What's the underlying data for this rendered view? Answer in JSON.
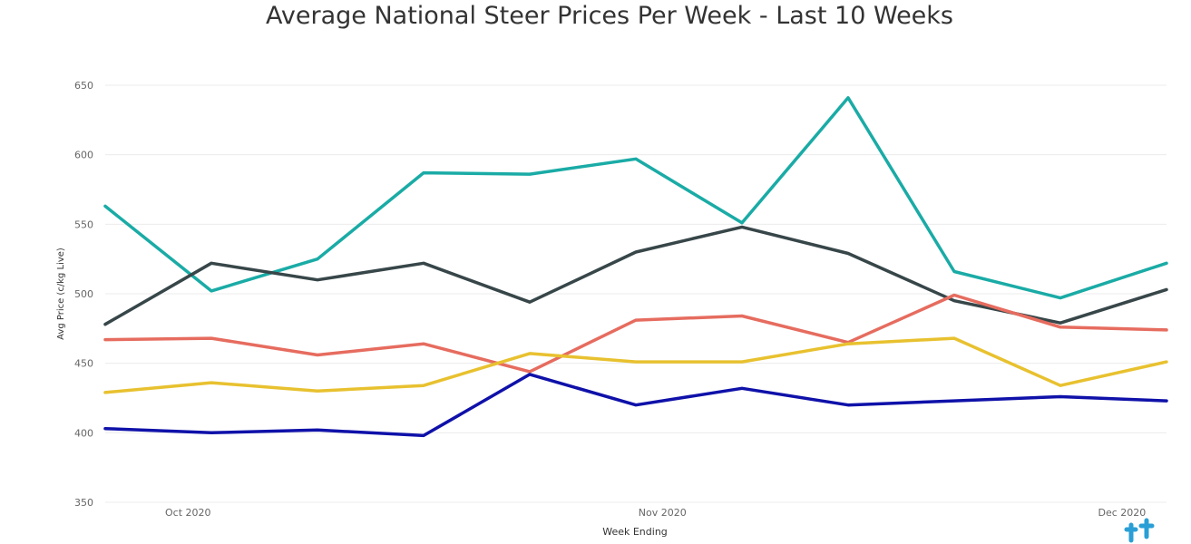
{
  "chart_data": {
    "type": "line",
    "title": "Average National Steer Prices Per Week - Last 10 Weeks",
    "xlabel": "Week Ending",
    "ylabel": "Avg Price (c/kg Live)",
    "ylim": [
      350,
      650
    ],
    "yticks": [
      350,
      400,
      450,
      500,
      550,
      600,
      650
    ],
    "xticks": [
      {
        "label": "Oct 2020",
        "index": 0.78
      },
      {
        "label": "Nov 2020",
        "index": 5.25
      },
      {
        "label": "Dec 2020",
        "index": 9.58
      }
    ],
    "grid": true,
    "legend": "none",
    "series": [
      {
        "color": "#1aaba6",
        "values": [
          563,
          502,
          525,
          587,
          586,
          597,
          551,
          641,
          516,
          497,
          522
        ]
      },
      {
        "color": "#374649",
        "values": [
          478,
          522,
          510,
          522,
          494,
          530,
          548,
          529,
          495,
          479,
          503
        ]
      },
      {
        "color": "#e66c5f",
        "values": [
          467,
          468,
          456,
          464,
          444,
          481,
          484,
          465,
          499,
          476,
          474
        ]
      },
      {
        "color": "#e8c12f",
        "values": [
          429,
          436,
          430,
          434,
          457,
          451,
          451,
          464,
          468,
          434,
          451
        ]
      },
      {
        "color": "#0f11a9",
        "values": [
          403,
          400,
          402,
          398,
          442,
          420,
          432,
          420,
          423,
          426,
          423
        ]
      }
    ]
  },
  "branding": {
    "watermark_icon": "brand-logo-icon",
    "watermark_color": "#2a9fd6"
  }
}
